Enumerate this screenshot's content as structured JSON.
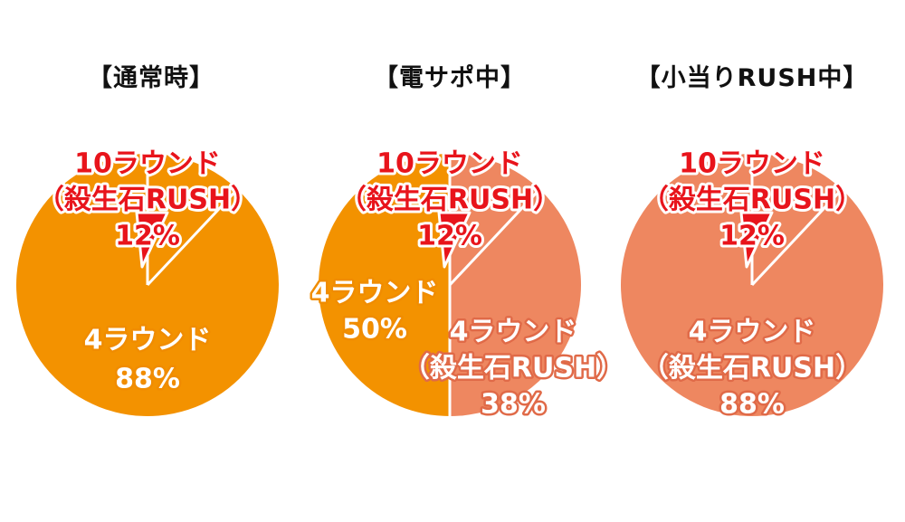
{
  "colors": {
    "orange": "#F39200",
    "salmon": "#EE8760",
    "red": "#E8141B",
    "divider": "#FFFFFF"
  },
  "chart_data": [
    {
      "type": "pie",
      "title": "【通常時】",
      "slices": [
        {
          "label_lines": [
            "10ラウンド",
            "（殺生石RUSH）",
            "12%"
          ],
          "value": 12,
          "color": "#F39200",
          "label_style": "red"
        },
        {
          "label_lines": [
            "4ラウンド",
            "88%"
          ],
          "value": 88,
          "color": "#F39200",
          "label_style": "white-orange"
        }
      ]
    },
    {
      "type": "pie",
      "title": "【電サポ中】",
      "slices": [
        {
          "label_lines": [
            "10ラウンド",
            "（殺生石RUSH）",
            "12%"
          ],
          "value": 12,
          "color": "#EE8760",
          "label_style": "red"
        },
        {
          "label_lines": [
            "4ラウンド",
            "（殺生石RUSH）",
            "38%"
          ],
          "value": 38,
          "color": "#EE8760",
          "label_style": "white-salmon"
        },
        {
          "label_lines": [
            "4ラウンド",
            "50%"
          ],
          "value": 50,
          "color": "#F39200",
          "label_style": "white-orange"
        }
      ]
    },
    {
      "type": "pie",
      "title": "【小当りRUSH中】",
      "slices": [
        {
          "label_lines": [
            "10ラウンド",
            "（殺生石RUSH）",
            "12%"
          ],
          "value": 12,
          "color": "#EE8760",
          "label_style": "red"
        },
        {
          "label_lines": [
            "4ラウンド",
            "（殺生石RUSH）",
            "88%"
          ],
          "value": 88,
          "color": "#EE8760",
          "label_style": "white-salmon"
        }
      ]
    }
  ]
}
